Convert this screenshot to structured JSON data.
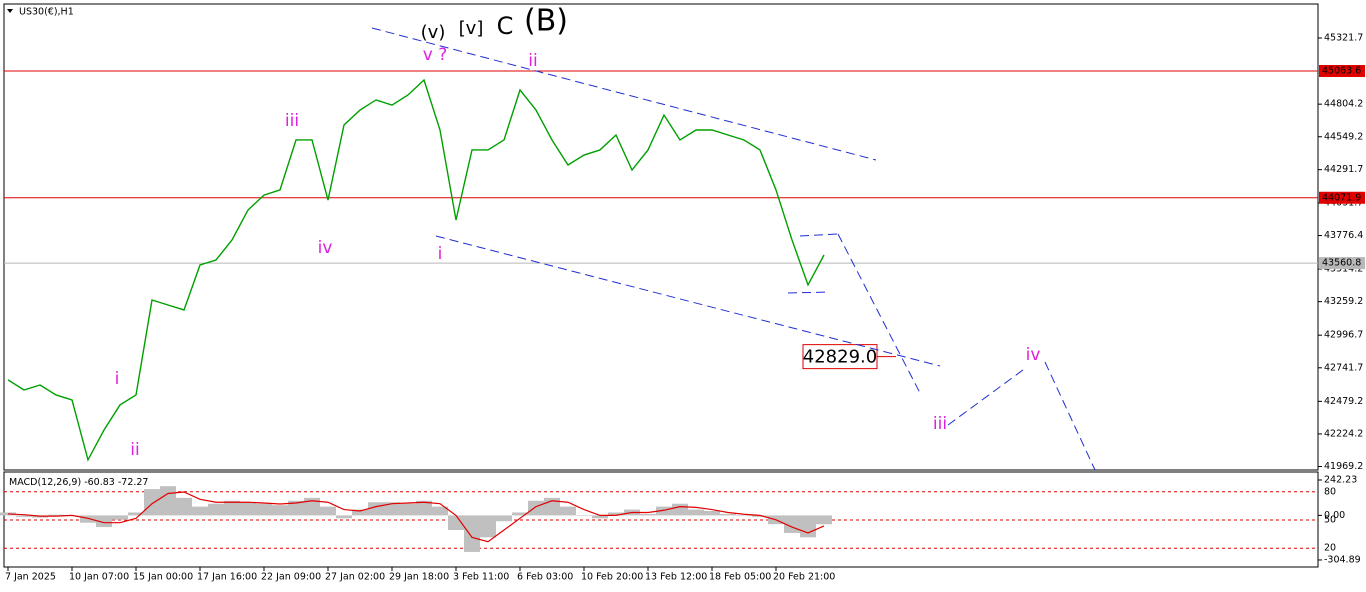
{
  "chart_data": [
    {
      "type": "line",
      "title": "US30(€),H1",
      "categories": [
        "7 Jan 2025",
        null,
        null,
        null,
        "10 Jan 07:00",
        null,
        null,
        null,
        "15 Jan 00:00",
        null,
        null,
        null,
        "17 Jan 16:00",
        null,
        null,
        null,
        "22 Jan 09:00",
        null,
        null,
        null,
        "27 Jan 02:00",
        null,
        null,
        null,
        "29 Jan 18:00",
        null,
        null,
        null,
        "3 Feb 11:00",
        null,
        null,
        null,
        "6 Feb 03:00",
        null,
        null,
        null,
        "10 Feb 20:00",
        null,
        null,
        null,
        "13 Feb 12:00",
        null,
        null,
        null,
        "18 Feb 05:00",
        null,
        null,
        null,
        "20 Feb 21:00",
        null,
        null,
        null
      ],
      "series": [
        {
          "color": "#00a000",
          "values": [
            42647,
            42568,
            42607,
            42529,
            42490,
            42021,
            42255,
            42451,
            42529,
            43272,
            43233,
            43194,
            43546,
            43585,
            43742,
            43976,
            44093,
            44133,
            44524,
            44524,
            44054,
            44641,
            44758,
            44837,
            44797,
            44876,
            44993,
            44602,
            43898,
            44446,
            44446,
            44524,
            44915,
            44758,
            44524,
            44328,
            44406,
            44446,
            44563,
            44289,
            44446,
            44719,
            44524,
            44602,
            44602,
            44563,
            44524,
            44446,
            44133,
            43742,
            43390,
            43624
          ]
        }
      ],
      "ylim": [
        41942,
        45580
      ],
      "yticks": [
        45321.7,
        44804.2,
        44549.2,
        44291.7,
        44031.7,
        43776.4,
        43514.2,
        43259.2,
        42996.7,
        42741.7,
        42479.2,
        42224.2,
        41969.2
      ],
      "levels": [
        {
          "value": 45063.6,
          "color": "#e00000"
        },
        {
          "value": 44071.9,
          "color": "#e00000"
        },
        {
          "value": 43560.8,
          "color": "#b8b8b8"
        }
      ],
      "target": {
        "value": 42829,
        "label": "42829.0"
      },
      "annotations": [
        "(v)",
        "[v]",
        "C",
        "(B)",
        "v ?",
        "ii",
        "iii",
        "iv",
        "i",
        "i",
        "ii",
        "iii",
        "iv"
      ]
    },
    {
      "type": "bar",
      "title": "MACD(12,26,9)",
      "series": [
        {
          "color": "#c0c0c0",
          "values": [
            20,
            -10,
            -15,
            5,
            0,
            -50,
            -80,
            -30,
            20,
            180,
            200,
            120,
            60,
            80,
            100,
            90,
            80,
            70,
            100,
            120,
            60,
            -20,
            40,
            90,
            90,
            80,
            100,
            60,
            -100,
            -250,
            -150,
            -40,
            20,
            100,
            120,
            60,
            0,
            -20,
            20,
            40,
            10,
            60,
            80,
            40,
            30,
            10,
            0,
            -10,
            -60,
            -120,
            -150,
            -60.83
          ]
        },
        {
          "color": "#e00000",
          "type": "line",
          "values": [
            10,
            5,
            -5,
            -5,
            0,
            -20,
            -50,
            -50,
            -20,
            80,
            150,
            160,
            110,
            90,
            90,
            90,
            85,
            78,
            85,
            100,
            90,
            40,
            30,
            60,
            80,
            85,
            90,
            80,
            0,
            -150,
            -180,
            -100,
            -20,
            60,
            100,
            90,
            40,
            0,
            0,
            20,
            20,
            35,
            60,
            55,
            40,
            20,
            8,
            0,
            -30,
            -80,
            -120,
            -72.27
          ]
        }
      ],
      "ylim": [
        -353,
        290
      ],
      "yticks": [
        242.23,
        {
          "value": 0,
          "label": "0.00"
        },
        -304.89
      ],
      "y2lim": [
        0,
        100
      ],
      "y2ticks": [
        80,
        50,
        20
      ],
      "grid": true,
      "grid_color": "#e00000"
    }
  ]
}
